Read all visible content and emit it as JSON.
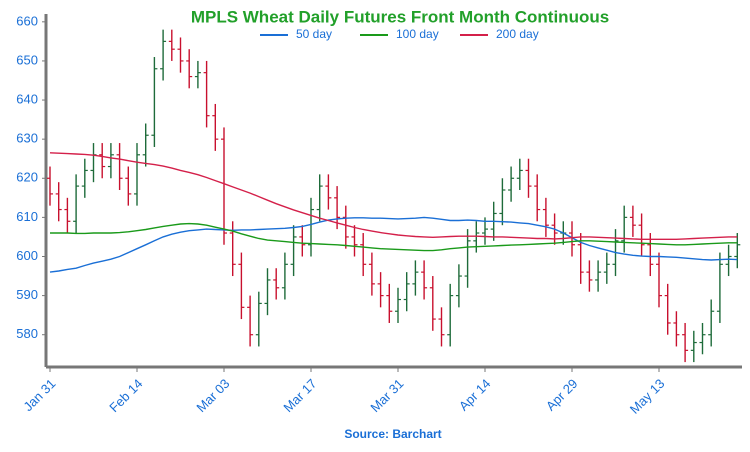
{
  "chart_data": {
    "type": "ohlc",
    "title": "MPLS Wheat Daily Futures Front Month Continuous",
    "source": "Source: Barchart",
    "categories": [
      "Jan 31",
      null,
      null,
      null,
      null,
      null,
      null,
      null,
      null,
      null,
      "Feb 14",
      null,
      null,
      null,
      null,
      null,
      null,
      null,
      null,
      null,
      "Mar 03",
      null,
      null,
      null,
      null,
      null,
      null,
      null,
      null,
      null,
      "Mar 17",
      null,
      null,
      null,
      null,
      null,
      null,
      null,
      null,
      null,
      "Mar 31",
      null,
      null,
      null,
      null,
      null,
      null,
      null,
      null,
      null,
      "Apr 14",
      null,
      null,
      null,
      null,
      null,
      null,
      null,
      null,
      null,
      "Apr 29",
      null,
      null,
      null,
      null,
      null,
      null,
      null,
      null,
      null,
      "May 13",
      null,
      null,
      null,
      null,
      null,
      null,
      null,
      null,
      null
    ],
    "ohlc": {
      "up_color": "#1e6b3a",
      "down_color": "#c8102e",
      "open": [
        620,
        616,
        612,
        609,
        618,
        622,
        626,
        623,
        626,
        620,
        616,
        626,
        631,
        648,
        655,
        653,
        650,
        646,
        647,
        636,
        630,
        606,
        598,
        587,
        580,
        588,
        594,
        592,
        598,
        605,
        603,
        612,
        618,
        615,
        610,
        605,
        603,
        598,
        593,
        590,
        586,
        589,
        593,
        596,
        592,
        584,
        580,
        590,
        595,
        604,
        606,
        607,
        611,
        617,
        620,
        622,
        618,
        612,
        608,
        606,
        606,
        603,
        596,
        594,
        596,
        598,
        604,
        610,
        608,
        603,
        598,
        590,
        583,
        580,
        576,
        578,
        580,
        586,
        598,
        600
      ],
      "high": [
        623,
        619,
        615,
        621,
        625,
        629,
        629,
        629,
        629,
        623,
        629,
        634,
        651,
        658,
        658,
        656,
        653,
        650,
        650,
        639,
        633,
        609,
        601,
        590,
        591,
        597,
        597,
        601,
        608,
        608,
        615,
        621,
        621,
        618,
        613,
        608,
        606,
        601,
        596,
        593,
        592,
        596,
        599,
        599,
        595,
        587,
        593,
        598,
        607,
        609,
        610,
        614,
        620,
        623,
        625,
        625,
        621,
        615,
        611,
        609,
        609,
        606,
        599,
        599,
        601,
        607,
        613,
        613,
        611,
        606,
        601,
        593,
        586,
        583,
        581,
        583,
        589,
        601,
        603,
        606
      ],
      "low": [
        613,
        609,
        606,
        606,
        615,
        619,
        620,
        620,
        617,
        613,
        613,
        623,
        628,
        645,
        650,
        647,
        643,
        643,
        633,
        627,
        603,
        595,
        584,
        577,
        577,
        585,
        589,
        589,
        595,
        600,
        600,
        609,
        612,
        607,
        602,
        600,
        595,
        590,
        587,
        583,
        583,
        586,
        590,
        589,
        581,
        577,
        577,
        587,
        592,
        601,
        603,
        604,
        608,
        614,
        617,
        615,
        609,
        605,
        603,
        603,
        600,
        593,
        591,
        591,
        593,
        595,
        601,
        605,
        600,
        595,
        587,
        580,
        577,
        573,
        573,
        575,
        577,
        583,
        595,
        597
      ],
      "close": [
        616,
        612,
        609,
        618,
        622,
        626,
        623,
        626,
        620,
        616,
        626,
        631,
        648,
        655,
        653,
        650,
        646,
        647,
        636,
        630,
        606,
        598,
        587,
        580,
        588,
        594,
        592,
        598,
        605,
        603,
        612,
        618,
        615,
        610,
        605,
        603,
        598,
        593,
        590,
        586,
        589,
        593,
        596,
        592,
        584,
        580,
        590,
        595,
        604,
        606,
        607,
        611,
        617,
        620,
        622,
        618,
        612,
        608,
        606,
        606,
        603,
        596,
        594,
        596,
        598,
        604,
        610,
        608,
        603,
        598,
        590,
        583,
        580,
        576,
        578,
        580,
        586,
        598,
        600,
        603
      ]
    },
    "series": [
      {
        "name": "50 day",
        "color": "#1a6fd6",
        "values": [
          596,
          596.3,
          596.7,
          597,
          597.7,
          598.3,
          598.8,
          599.3,
          600,
          601,
          602,
          603,
          604,
          605,
          605.7,
          606.2,
          606.6,
          606.8,
          607,
          606.9,
          606.8,
          606.7,
          606.8,
          606.8,
          606.9,
          607,
          607.1,
          607.2,
          607.4,
          607.7,
          608.2,
          608.8,
          609.3,
          609.6,
          609.8,
          609.9,
          609.9,
          609.8,
          609.8,
          609.7,
          609.6,
          609.7,
          609.8,
          610,
          609.8,
          609.5,
          609.2,
          609.2,
          609.3,
          609.2,
          609,
          609,
          608.9,
          608.8,
          608.6,
          608.4,
          608,
          607.6,
          607,
          606,
          604.8,
          603.6,
          602.8,
          602.2,
          601.6,
          601,
          600.6,
          600.3,
          600.1,
          600,
          600,
          599.9,
          599.8,
          599.6,
          599.4,
          599.2,
          599.1,
          599.2,
          599.3,
          599.2
        ]
      },
      {
        "name": "100 day",
        "color": "#1a9a1a",
        "values": [
          606,
          606,
          606,
          605.9,
          605.9,
          606,
          606,
          606,
          606.1,
          606.3,
          606.6,
          606.9,
          607.3,
          607.7,
          608,
          608.3,
          608.4,
          608.3,
          608,
          607.5,
          607,
          606.5,
          605.8,
          605.2,
          604.6,
          604.2,
          604,
          603.8,
          603.6,
          603.4,
          603.3,
          603.2,
          603.1,
          603,
          602.8,
          602.6,
          602.4,
          602.2,
          602,
          601.9,
          601.8,
          601.7,
          601.6,
          601.5,
          601.5,
          601.7,
          602,
          602.2,
          602.4,
          602.5,
          602.6,
          602.7,
          602.8,
          602.9,
          603,
          603.1,
          603.2,
          603.3,
          603.4,
          603.6,
          603.8,
          604,
          604,
          603.9,
          603.8,
          603.7,
          603.6,
          603.5,
          603.4,
          603.3,
          603.2,
          603.1,
          603,
          603,
          603.1,
          603.2,
          603.3,
          603.4,
          603.5,
          603.5
        ]
      },
      {
        "name": "200 day",
        "color": "#d4204a",
        "values": [
          626.5,
          626.4,
          626.3,
          626.2,
          626.1,
          625.9,
          625.6,
          625.2,
          624.9,
          624.5,
          624.1,
          623.8,
          623.5,
          623.1,
          622.6,
          622,
          621.5,
          620.9,
          620.2,
          619.4,
          618.6,
          617.8,
          617,
          616.2,
          615.3,
          614.4,
          613.5,
          612.7,
          611.9,
          611.2,
          610.5,
          609.8,
          609.2,
          608.6,
          608,
          607.4,
          606.9,
          606.5,
          606.1,
          605.8,
          605.5,
          605.3,
          605.1,
          605,
          604.9,
          605,
          605.1,
          605.2,
          605.2,
          605.2,
          605.1,
          605,
          605,
          604.9,
          604.8,
          604.7,
          604.6,
          604.6,
          604.5,
          604.6,
          604.8,
          605,
          605,
          604.9,
          604.8,
          604.7,
          604.6,
          604.5,
          604.4,
          604.4,
          604.4,
          604.4,
          604.4,
          604.5,
          604.6,
          604.7,
          604.8,
          604.9,
          605,
          605
        ]
      }
    ],
    "ylim": [
      572,
      662
    ],
    "yticks": [
      580,
      590,
      600,
      610,
      620,
      630,
      640,
      650,
      660
    ]
  }
}
